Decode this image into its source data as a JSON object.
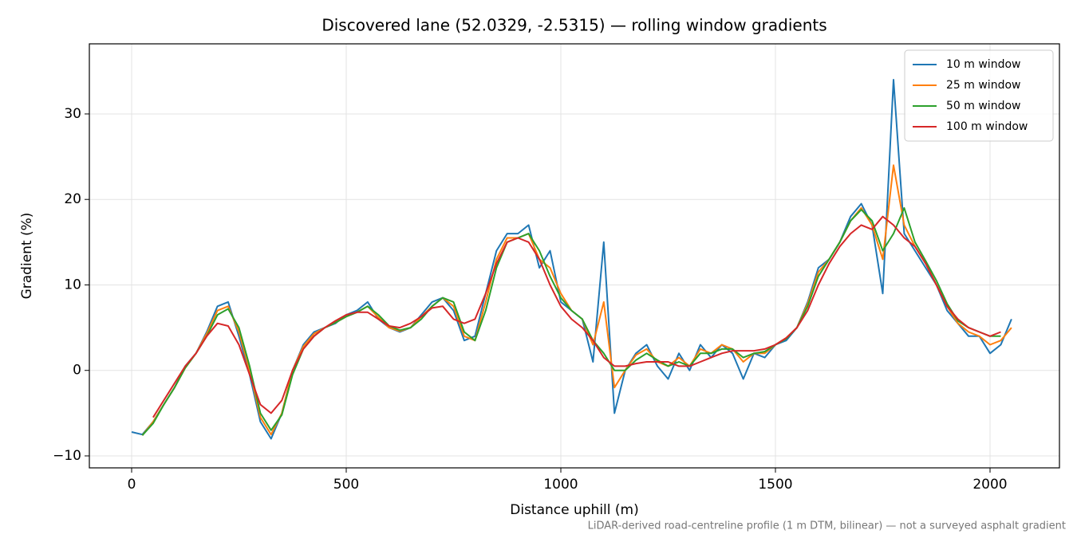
{
  "chart_data": {
    "type": "line",
    "title": "Discovered lane (52.0329, -2.5315) — rolling window gradients",
    "xlabel": "Distance uphill (m)",
    "ylabel": "Gradient (%)",
    "footnote": "LiDAR-derived road-centreline profile (1 m DTM, bilinear) — not a surveyed asphalt gradient",
    "grid": true,
    "legend": "upper right",
    "xlim": [
      -98.5,
      2161.7
    ],
    "ylim": [
      -11.4,
      38.2
    ],
    "xticks": [
      0,
      500,
      1000,
      1500,
      2000
    ],
    "yticks": [
      {
        "value": -10,
        "label": "−10"
      },
      0,
      10,
      20,
      30
    ],
    "x": [
      0,
      25,
      50,
      75,
      100,
      125,
      150,
      175,
      200,
      225,
      250,
      275,
      300,
      325,
      350,
      375,
      400,
      425,
      450,
      475,
      500,
      525,
      550,
      575,
      600,
      625,
      650,
      675,
      700,
      725,
      750,
      775,
      800,
      825,
      850,
      875,
      900,
      925,
      950,
      975,
      1000,
      1025,
      1050,
      1075,
      1100,
      1125,
      1150,
      1175,
      1200,
      1225,
      1250,
      1275,
      1300,
      1325,
      1350,
      1375,
      1400,
      1425,
      1450,
      1475,
      1500,
      1525,
      1550,
      1575,
      1600,
      1625,
      1650,
      1675,
      1700,
      1725,
      1750,
      1775,
      1800,
      1825,
      1850,
      1875,
      1900,
      1925,
      1950,
      1975,
      2000,
      2025,
      2050
    ],
    "series": [
      {
        "name": "10 m window",
        "color": "#1f77b4",
        "values": [
          -7.2,
          -7.5,
          -6,
          -4,
          -2,
          0.5,
          2,
          4.5,
          7.5,
          8,
          4,
          -0.5,
          -6,
          -8,
          -5,
          0,
          3,
          4.5,
          5,
          5.5,
          6.5,
          7,
          8,
          6,
          5,
          4.5,
          5,
          6.5,
          8,
          8.5,
          7,
          3.5,
          4,
          9,
          14,
          16,
          16,
          17,
          12,
          14,
          8,
          7,
          6,
          1,
          15,
          -5,
          0,
          2,
          3,
          0.5,
          -1,
          2,
          0,
          3,
          1.5,
          3,
          2,
          -1,
          2,
          1.5,
          3,
          3.5,
          5,
          8,
          12,
          13,
          15,
          18,
          19.5,
          17,
          9,
          34,
          16,
          14,
          12,
          10,
          7,
          5.5,
          4,
          4,
          2,
          3,
          6
        ]
      },
      {
        "name": "25 m window",
        "color": "#ff7f0e",
        "values": [
          null,
          -7.6,
          -6,
          -4,
          -2,
          0.3,
          2,
          4.3,
          7,
          7.5,
          4.5,
          0,
          -5.5,
          -7.5,
          -5,
          0,
          2.8,
          4.3,
          5,
          5.6,
          6.3,
          6.8,
          7.5,
          6.2,
          5,
          4.6,
          5,
          6.3,
          7.5,
          8.5,
          7.5,
          4,
          3.5,
          8,
          13,
          15.5,
          15.5,
          16,
          13,
          12,
          9,
          7,
          6,
          3,
          8,
          -2,
          0,
          1.8,
          2.5,
          1,
          0.5,
          1.5,
          0.5,
          2.5,
          2,
          3,
          2.5,
          1,
          2,
          2,
          3,
          3.8,
          5,
          7.8,
          11.5,
          13,
          15,
          17.5,
          19,
          17,
          13,
          24,
          17,
          14.5,
          12.5,
          10,
          7.5,
          5.5,
          4.5,
          4,
          3,
          3.5,
          5
        ]
      },
      {
        "name": "50 m window",
        "color": "#2ca02c",
        "values": [
          null,
          -7.6,
          -6.2,
          -4,
          -2,
          0.3,
          2,
          4,
          6.5,
          7.2,
          5,
          0.5,
          -5,
          -7,
          -5.2,
          -0.5,
          2.5,
          4,
          5,
          5.6,
          6.3,
          6.8,
          7.5,
          6.5,
          5.2,
          4.7,
          5,
          6,
          7.5,
          8.5,
          8,
          4.5,
          3.5,
          7,
          12,
          15,
          15.5,
          16,
          14,
          11,
          8.5,
          7,
          6,
          3.5,
          2,
          0,
          0,
          1.2,
          2,
          1.2,
          0.5,
          1,
          0.5,
          2,
          2,
          2.5,
          2.5,
          1.5,
          2,
          2.2,
          3,
          3.7,
          5,
          7.5,
          11,
          13,
          15,
          17.5,
          18.8,
          17.5,
          14,
          16,
          19,
          15,
          12.8,
          10.5,
          7.8,
          5.8,
          5,
          4.5,
          4,
          4,
          null
        ]
      },
      {
        "name": "100 m window",
        "color": "#d62728",
        "values": [
          null,
          null,
          -5.5,
          -3.5,
          -1.5,
          0.5,
          2,
          4,
          5.5,
          5.2,
          3,
          -0.5,
          -4,
          -5,
          -3.5,
          0,
          2.5,
          4,
          5,
          5.8,
          6.5,
          6.8,
          6.8,
          6,
          5.2,
          5,
          5.5,
          6.3,
          7.3,
          7.5,
          6,
          5.5,
          6,
          9,
          12.5,
          15,
          15.5,
          15,
          13,
          10,
          7.5,
          6,
          5,
          3.5,
          1.5,
          0.5,
          0.5,
          0.8,
          1,
          1,
          1,
          0.5,
          0.5,
          1,
          1.5,
          2,
          2.3,
          2.3,
          2.3,
          2.5,
          3,
          3.8,
          5,
          7,
          10,
          12.5,
          14.5,
          16,
          17,
          16.5,
          18,
          17,
          15.5,
          14.5,
          12.5,
          10,
          7.5,
          6,
          5,
          4.5,
          4,
          4.5,
          null
        ]
      }
    ]
  }
}
